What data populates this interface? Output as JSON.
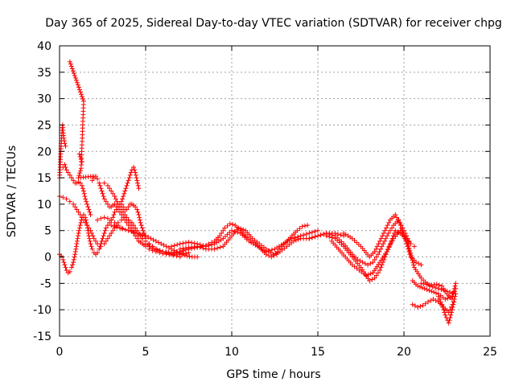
{
  "chart_data": {
    "type": "scatter",
    "title": "Day 365 of 2025, Sidereal Day-to-day VTEC variation (SDTVAR) for receiver chpg",
    "xlabel": "GPS time / hours",
    "ylabel": "SDTVAR / TECUs",
    "xlim": [
      0,
      25
    ],
    "ylim": [
      -15,
      40
    ],
    "xticks": [
      0,
      5,
      10,
      15,
      20,
      25
    ],
    "yticks": [
      -15,
      -10,
      -5,
      0,
      5,
      10,
      15,
      20,
      25,
      30,
      35,
      40
    ],
    "grid": true,
    "marker": "+",
    "color": "#ff0000",
    "series": [
      {
        "name": "arc-low-start",
        "x": [
          0.0,
          0.1,
          0.2,
          0.3,
          0.4,
          0.5,
          0.6,
          0.7,
          0.8,
          0.9,
          1.0,
          1.1,
          1.2,
          1.3,
          1.4,
          1.5,
          1.6,
          1.7,
          1.8,
          1.9,
          2.0,
          2.1,
          2.2,
          2.3,
          2.4,
          2.5,
          2.6,
          2.7,
          2.8,
          2.9,
          3.0,
          3.1,
          3.2,
          3.3,
          3.4,
          3.5,
          3.6,
          3.7,
          3.8,
          3.9,
          4.0,
          4.1,
          4.2,
          4.3,
          4.4,
          4.5,
          4.6,
          4.7,
          4.8,
          4.9,
          5.0
        ],
        "y": [
          0.5,
          0.2,
          -0.5,
          -1.5,
          -2.5,
          -3.0,
          -2.8,
          -2.0,
          -1.0,
          0.5,
          2.5,
          4.5,
          6.0,
          7.5,
          8.0,
          7.5,
          6.0,
          4.0,
          2.5,
          1.5,
          0.8,
          0.5,
          0.8,
          1.5,
          2.5,
          3.5,
          4.5,
          5.5,
          6.0,
          6.5,
          7.0,
          7.5,
          8.5,
          9.0,
          9.5,
          10.0,
          10.0,
          9.5,
          9.0,
          9.0,
          9.5,
          10.0,
          10.0,
          9.8,
          9.5,
          9.0,
          8.0,
          6.5,
          5.5,
          4.5,
          3.5
        ]
      },
      {
        "name": "arc-11",
        "x": [
          0.0,
          0.2,
          0.4,
          0.6,
          0.8,
          1.0,
          1.2,
          1.4,
          1.6,
          1.8,
          2.0,
          2.2,
          2.4,
          2.6,
          2.8,
          3.0,
          3.2,
          3.4,
          3.6,
          3.8,
          4.0,
          4.2,
          4.4,
          4.6,
          4.8,
          5.0,
          5.2,
          5.4,
          5.6,
          5.8,
          6.0,
          6.2,
          6.5,
          7.0,
          7.5
        ],
        "y": [
          11.5,
          11.3,
          11.0,
          10.5,
          10.0,
          9.0,
          8.0,
          7.0,
          6.0,
          5.0,
          3.5,
          2.5,
          2.0,
          2.5,
          3.5,
          4.5,
          5.5,
          6.5,
          7.0,
          7.5,
          7.0,
          6.5,
          5.5,
          4.5,
          3.5,
          3.0,
          2.5,
          2.0,
          1.5,
          1.2,
          1.0,
          0.8,
          0.5,
          0.5,
          0.8
        ]
      },
      {
        "name": "arc-17-13",
        "x": [
          0.2,
          0.3,
          0.4,
          0.5,
          0.6,
          0.7,
          0.8,
          0.9,
          1.0,
          1.1,
          1.2,
          1.3,
          1.4,
          1.5,
          1.6,
          1.7,
          1.8
        ],
        "y": [
          17.0,
          17.5,
          16.5,
          16.0,
          15.5,
          15.0,
          14.5,
          14.0,
          14.0,
          14.2,
          14.0,
          13.5,
          12.5,
          11.0,
          10.0,
          9.0,
          8.0
        ]
      },
      {
        "name": "spike-start",
        "x": [
          0.0,
          0.02,
          0.04,
          0.06,
          0.08,
          0.1,
          0.12,
          0.14,
          0.16,
          0.18,
          0.2,
          0.25,
          0.3,
          0.35
        ],
        "y": [
          15.0,
          16.0,
          17.5,
          19.0,
          20.5,
          21.5,
          22.5,
          23.5,
          24.5,
          25.0,
          24.0,
          22.5,
          21.5,
          21.0
        ]
      },
      {
        "name": "cluster-1h",
        "x": [
          1.15,
          1.2,
          1.25,
          1.3
        ],
        "y": [
          19.5,
          19.0,
          18.5,
          18.0
        ]
      },
      {
        "name": "outliers",
        "x": [
          0.6,
          1.4,
          1.25,
          1.1,
          1.95
        ],
        "y": [
          37.0,
          29.5,
          16.8,
          15.0,
          15.3
        ]
      },
      {
        "name": "arc-15",
        "x": [
          1.9,
          2.0,
          2.1,
          2.2,
          2.3,
          2.4,
          2.5,
          2.6,
          2.7,
          2.8,
          2.9,
          3.0,
          3.1,
          3.2,
          3.3,
          3.4,
          3.5,
          3.6,
          3.7,
          3.8,
          3.9,
          4.0,
          4.1,
          4.2,
          4.3,
          4.4,
          4.5,
          4.6,
          4.7,
          4.8,
          4.9,
          5.0,
          5.2,
          5.4,
          5.6,
          5.8,
          6.0,
          6.2,
          6.4,
          6.6,
          6.8,
          7.0,
          7.2
        ],
        "y": [
          14.5,
          15.0,
          15.3,
          14.8,
          14.0,
          13.0,
          12.0,
          11.0,
          10.5,
          10.0,
          9.5,
          9.5,
          9.8,
          10.0,
          9.5,
          9.0,
          8.5,
          8.0,
          7.5,
          7.0,
          6.5,
          6.0,
          5.5,
          5.0,
          4.5,
          4.0,
          3.5,
          3.0,
          2.8,
          2.5,
          2.3,
          2.0,
          1.5,
          1.2,
          1.0,
          0.8,
          0.6,
          0.5,
          0.5,
          0.6,
          0.8,
          1.0,
          1.2
        ]
      },
      {
        "name": "arc-16",
        "x": [
          3.6,
          3.7,
          3.8,
          3.9,
          4.0,
          4.1,
          4.2,
          4.3,
          4.4,
          4.5,
          4.6
        ],
        "y": [
          10.5,
          11.5,
          12.5,
          13.5,
          14.5,
          15.5,
          16.5,
          17.0,
          16.0,
          14.5,
          13.0
        ]
      },
      {
        "name": "arc-14",
        "x": [
          2.6,
          2.8,
          3.0,
          3.2,
          3.4,
          3.6,
          3.8,
          4.0,
          4.2,
          4.4,
          4.6,
          4.8,
          5.0,
          5.2,
          5.4,
          5.6,
          5.8,
          6.0,
          6.2,
          6.4,
          6.6,
          6.8,
          7.0
        ],
        "y": [
          14.0,
          13.5,
          12.5,
          11.5,
          10.0,
          9.0,
          8.0,
          7.0,
          6.0,
          5.0,
          4.0,
          3.5,
          3.0,
          2.5,
          2.0,
          1.5,
          1.2,
          1.0,
          0.8,
          0.5,
          0.3,
          0.2,
          0.0
        ]
      },
      {
        "name": "arc-6",
        "x": [
          3.0,
          3.5,
          4.0,
          4.5,
          5.0,
          5.3,
          5.6,
          5.9,
          6.2,
          6.5,
          6.8,
          7.1,
          7.4,
          7.7,
          8.0
        ],
        "y": [
          6.0,
          5.5,
          5.0,
          4.5,
          4.0,
          3.5,
          3.0,
          2.5,
          2.0,
          1.5,
          1.0,
          0.5,
          0.2,
          0.0,
          0.0
        ]
      },
      {
        "name": "arc-7",
        "x": [
          2.2,
          2.4,
          2.6,
          2.8,
          3.0,
          3.2,
          3.4,
          3.6
        ],
        "y": [
          7.0,
          7.3,
          7.5,
          7.3,
          7.0,
          6.5,
          6.0,
          5.5
        ]
      },
      {
        "name": "mid-a",
        "x": [
          5.0,
          5.5,
          6.0,
          6.5,
          7.0,
          7.5,
          8.0,
          8.5,
          9.0,
          9.3,
          9.6,
          9.9,
          10.2,
          10.5,
          10.8,
          11.1,
          11.4,
          11.7,
          12.0,
          12.3,
          12.6,
          12.9,
          13.2,
          13.5,
          13.8,
          14.1,
          14.4
        ],
        "y": [
          2.5,
          1.5,
          1.0,
          0.8,
          1.0,
          1.5,
          1.8,
          2.2,
          3.0,
          4.0,
          5.5,
          6.3,
          6.0,
          5.0,
          4.0,
          3.0,
          2.5,
          1.5,
          0.5,
          0.0,
          0.5,
          2.0,
          3.0,
          4.0,
          5.0,
          5.8,
          6.0
        ]
      },
      {
        "name": "mid-b",
        "x": [
          6.5,
          7.0,
          7.5,
          8.0,
          8.5,
          9.0,
          9.5,
          10.0,
          10.5,
          11.0,
          11.5,
          12.0,
          12.5,
          13.0,
          13.5,
          14.0,
          14.5,
          15.0
        ],
        "y": [
          2.0,
          2.5,
          2.8,
          2.5,
          2.0,
          2.5,
          3.5,
          5.0,
          4.5,
          3.0,
          2.0,
          1.0,
          1.5,
          2.5,
          3.5,
          4.0,
          4.5,
          5.0
        ]
      },
      {
        "name": "mid-c",
        "x": [
          7.0,
          7.5,
          8.0,
          8.5,
          9.0,
          9.5,
          10.0,
          10.4,
          10.8,
          11.2,
          11.6,
          12.0,
          12.4,
          12.8,
          13.2,
          13.6,
          14.0,
          14.5,
          15.0,
          15.5,
          16.0,
          16.5
        ],
        "y": [
          1.5,
          1.8,
          2.0,
          1.5,
          1.5,
          2.0,
          4.0,
          5.5,
          5.0,
          3.5,
          2.5,
          1.5,
          0.5,
          1.0,
          2.0,
          3.0,
          3.5,
          3.5,
          4.0,
          4.5,
          4.5,
          4.0
        ]
      },
      {
        "name": "late-a",
        "x": [
          14.5,
          15.0,
          15.5,
          16.0,
          16.5,
          17.0,
          17.3,
          17.6,
          17.9,
          18.2,
          18.5,
          18.8,
          19.1,
          19.4,
          19.7,
          20.0,
          20.3
        ],
        "y": [
          3.5,
          4.0,
          4.5,
          4.0,
          2.5,
          0.5,
          -0.5,
          -1.0,
          -1.5,
          -1.0,
          0.5,
          2.5,
          4.5,
          6.0,
          7.0,
          5.0,
          3.0
        ]
      },
      {
        "name": "late-b",
        "x": [
          15.5,
          16.0,
          16.5,
          17.0,
          17.5,
          18.0,
          18.3,
          18.6,
          18.9,
          19.2,
          19.5,
          19.8,
          20.1,
          20.4,
          20.6
        ],
        "y": [
          4.0,
          3.5,
          2.0,
          0.0,
          -2.0,
          -4.5,
          -4.0,
          -2.5,
          0.0,
          2.5,
          5.0,
          4.5,
          3.5,
          2.5,
          2.0
        ]
      },
      {
        "name": "late-c",
        "x": [
          16.5,
          17.0,
          17.5,
          18.0,
          18.3,
          18.6,
          18.9,
          19.2,
          19.5,
          19.8,
          20.1,
          20.4,
          20.7,
          21.0
        ],
        "y": [
          4.5,
          3.5,
          2.0,
          0.0,
          1.0,
          3.0,
          5.0,
          7.0,
          8.0,
          6.0,
          3.0,
          0.0,
          -1.0,
          -1.5
        ]
      },
      {
        "name": "late-d",
        "x": [
          15.8,
          16.2,
          16.6,
          17.0,
          17.4,
          17.8,
          18.2,
          18.6,
          19.0,
          19.4,
          19.8,
          20.2,
          20.6,
          21.0,
          21.5,
          22.0,
          22.5,
          23.0
        ],
        "y": [
          3.0,
          1.5,
          0.0,
          -1.5,
          -2.5,
          -3.5,
          -3.0,
          -1.0,
          1.0,
          3.5,
          5.0,
          3.0,
          -2.0,
          -4.0,
          -5.5,
          -6.0,
          -6.5,
          -7.0
        ]
      },
      {
        "name": "end-a",
        "x": [
          20.5,
          20.8,
          21.1,
          21.4,
          21.7,
          22.0,
          22.3,
          22.6,
          22.9
        ],
        "y": [
          -9.0,
          -9.5,
          -9.2,
          -8.5,
          -8.0,
          -8.5,
          -9.5,
          -10.5,
          -8.5
        ]
      },
      {
        "name": "end-b",
        "x": [
          21.0,
          21.3,
          21.6,
          21.9,
          22.2,
          22.5,
          22.8,
          23.0
        ],
        "y": [
          -5.0,
          -5.2,
          -5.3,
          -5.2,
          -5.5,
          -7.0,
          -8.0,
          -5.0
        ]
      },
      {
        "name": "end-c",
        "x": [
          22.0,
          22.2,
          22.4,
          22.6,
          22.8,
          23.0
        ],
        "y": [
          -7.5,
          -9.0,
          -11.0,
          -12.5,
          -10.0,
          -7.0
        ]
      },
      {
        "name": "end-d",
        "x": [
          20.5,
          20.8,
          21.2,
          21.6,
          22.0,
          22.4,
          22.8,
          23.0
        ],
        "y": [
          -4.5,
          -5.5,
          -6.0,
          -6.5,
          -7.0,
          -8.0,
          -7.5,
          -6.0
        ]
      }
    ]
  }
}
